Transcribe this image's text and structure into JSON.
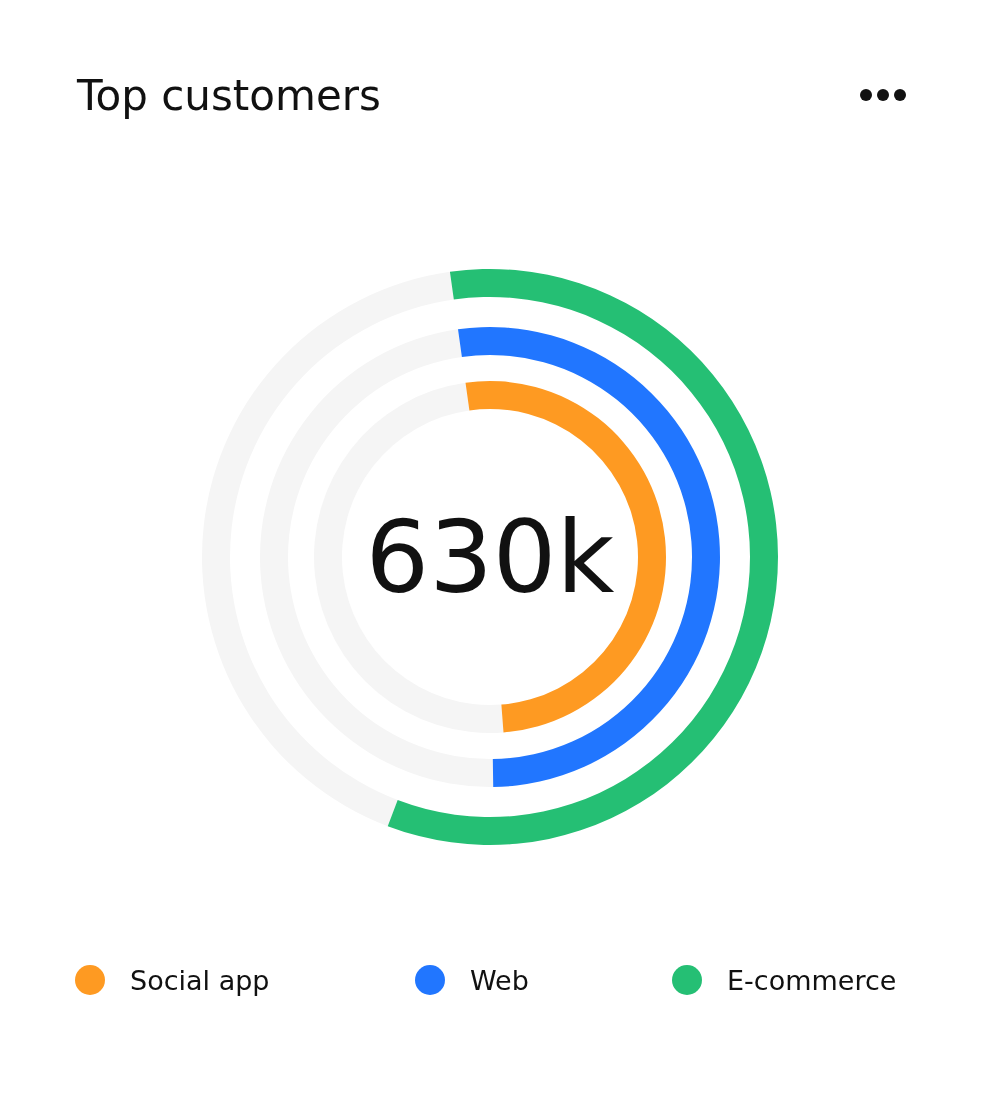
{
  "chart_data": [
    {
      "type": "donut",
      "title": "Top customers",
      "categories": [
        "Social app",
        null
      ],
      "values": [
        51,
        49
      ],
      "colors": [
        "#fe9a22",
        "#f5f5f5"
      ],
      "annotations": [
        "630k"
      ],
      "legend": "bottom"
    },
    {
      "type": "donut",
      "categories": [
        "Web",
        null
      ],
      "values": [
        52,
        48
      ],
      "colors": [
        "#2176ff",
        "#f5f5f5"
      ],
      "legend": "bottom"
    },
    {
      "type": "donut",
      "categories": [
        "E-commerce",
        null
      ],
      "values": [
        58,
        42
      ],
      "colors": [
        "#25bf74",
        "#f5f5f5"
      ],
      "legend": "bottom"
    }
  ]
}
